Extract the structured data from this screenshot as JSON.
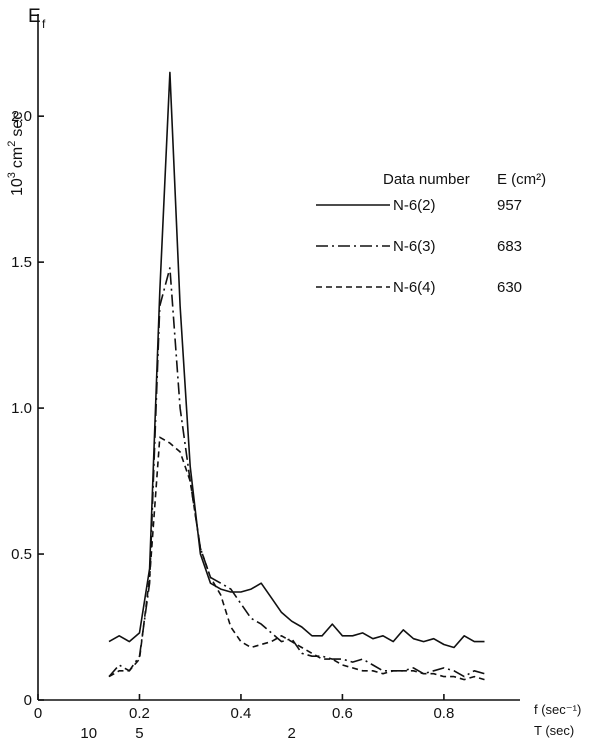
{
  "chart_data": {
    "type": "line",
    "title": "",
    "ylabel_symbol": "E",
    "ylabel_symbol_sub": "f",
    "ylabel_unit_prefix": "10",
    "ylabel_unit_exp": "3",
    "ylabel_unit_main": "cm",
    "ylabel_unit_exp2": "2",
    "ylabel_unit_tail": "sec",
    "xlabel": "f (sec⁻¹)",
    "x2label": "T (sec)",
    "xlim": [
      0,
      0.95
    ],
    "ylim": [
      0,
      2.35
    ],
    "x_ticks": [
      {
        "value": 0,
        "label": "0"
      },
      {
        "value": 0.2,
        "label": "0.2"
      },
      {
        "value": 0.4,
        "label": "0.4"
      },
      {
        "value": 0.6,
        "label": "0.6"
      },
      {
        "value": 0.8,
        "label": "0.8"
      }
    ],
    "period_ticks": [
      {
        "value": 0.1,
        "label": "10"
      },
      {
        "value": 0.2,
        "label": "5"
      },
      {
        "value": 0.5,
        "label": "2"
      }
    ],
    "y_ticks": [
      {
        "value": 0,
        "label": "0"
      },
      {
        "value": 0.5,
        "label": "0.5"
      },
      {
        "value": 1.0,
        "label": "1.0"
      },
      {
        "value": 1.5,
        "label": "1.5"
      },
      {
        "value": 2.0,
        "label": "2.0"
      }
    ],
    "legend": {
      "header_name": "Data number",
      "header_value": "E (cm²)",
      "position": "top-right"
    },
    "series": [
      {
        "name": "N-6(2)",
        "energy": "957",
        "dash": "solid",
        "x": [
          0.14,
          0.16,
          0.18,
          0.2,
          0.22,
          0.24,
          0.26,
          0.28,
          0.3,
          0.32,
          0.34,
          0.36,
          0.38,
          0.4,
          0.42,
          0.44,
          0.46,
          0.48,
          0.5,
          0.52,
          0.54,
          0.56,
          0.58,
          0.6,
          0.62,
          0.64,
          0.66,
          0.68,
          0.7,
          0.72,
          0.74,
          0.76,
          0.78,
          0.8,
          0.82,
          0.84,
          0.86,
          0.88
        ],
        "y": [
          0.2,
          0.22,
          0.2,
          0.23,
          0.45,
          1.4,
          2.15,
          1.35,
          0.8,
          0.5,
          0.4,
          0.38,
          0.37,
          0.37,
          0.38,
          0.4,
          0.35,
          0.3,
          0.27,
          0.25,
          0.22,
          0.22,
          0.26,
          0.22,
          0.22,
          0.23,
          0.21,
          0.22,
          0.2,
          0.24,
          0.21,
          0.2,
          0.21,
          0.19,
          0.18,
          0.22,
          0.2,
          0.2
        ]
      },
      {
        "name": "N-6(3)",
        "energy": "683",
        "dash": "dash-dot",
        "x": [
          0.14,
          0.16,
          0.18,
          0.2,
          0.22,
          0.24,
          0.26,
          0.28,
          0.3,
          0.32,
          0.34,
          0.36,
          0.38,
          0.4,
          0.42,
          0.44,
          0.46,
          0.48,
          0.5,
          0.52,
          0.54,
          0.56,
          0.58,
          0.6,
          0.62,
          0.64,
          0.66,
          0.68,
          0.7,
          0.72,
          0.74,
          0.76,
          0.78,
          0.8,
          0.82,
          0.84,
          0.86,
          0.88
        ],
        "y": [
          0.08,
          0.12,
          0.1,
          0.15,
          0.4,
          1.35,
          1.48,
          1.0,
          0.75,
          0.52,
          0.42,
          0.4,
          0.38,
          0.33,
          0.28,
          0.26,
          0.23,
          0.2,
          0.21,
          0.16,
          0.15,
          0.15,
          0.14,
          0.14,
          0.13,
          0.14,
          0.12,
          0.1,
          0.1,
          0.1,
          0.11,
          0.09,
          0.1,
          0.11,
          0.1,
          0.08,
          0.1,
          0.09
        ]
      },
      {
        "name": "N-6(4)",
        "energy": "630",
        "dash": "dashed",
        "x": [
          0.14,
          0.16,
          0.18,
          0.2,
          0.22,
          0.24,
          0.26,
          0.28,
          0.3,
          0.32,
          0.34,
          0.36,
          0.38,
          0.4,
          0.42,
          0.44,
          0.46,
          0.48,
          0.5,
          0.52,
          0.54,
          0.56,
          0.58,
          0.6,
          0.62,
          0.64,
          0.66,
          0.68,
          0.7,
          0.72,
          0.74,
          0.76,
          0.78,
          0.8,
          0.82,
          0.84,
          0.86,
          0.88
        ],
        "y": [
          0.08,
          0.1,
          0.1,
          0.14,
          0.42,
          0.9,
          0.88,
          0.85,
          0.75,
          0.52,
          0.42,
          0.36,
          0.25,
          0.2,
          0.18,
          0.19,
          0.2,
          0.22,
          0.2,
          0.18,
          0.16,
          0.14,
          0.14,
          0.12,
          0.11,
          0.1,
          0.1,
          0.09,
          0.1,
          0.1,
          0.1,
          0.09,
          0.09,
          0.08,
          0.08,
          0.07,
          0.08,
          0.07
        ]
      }
    ]
  }
}
